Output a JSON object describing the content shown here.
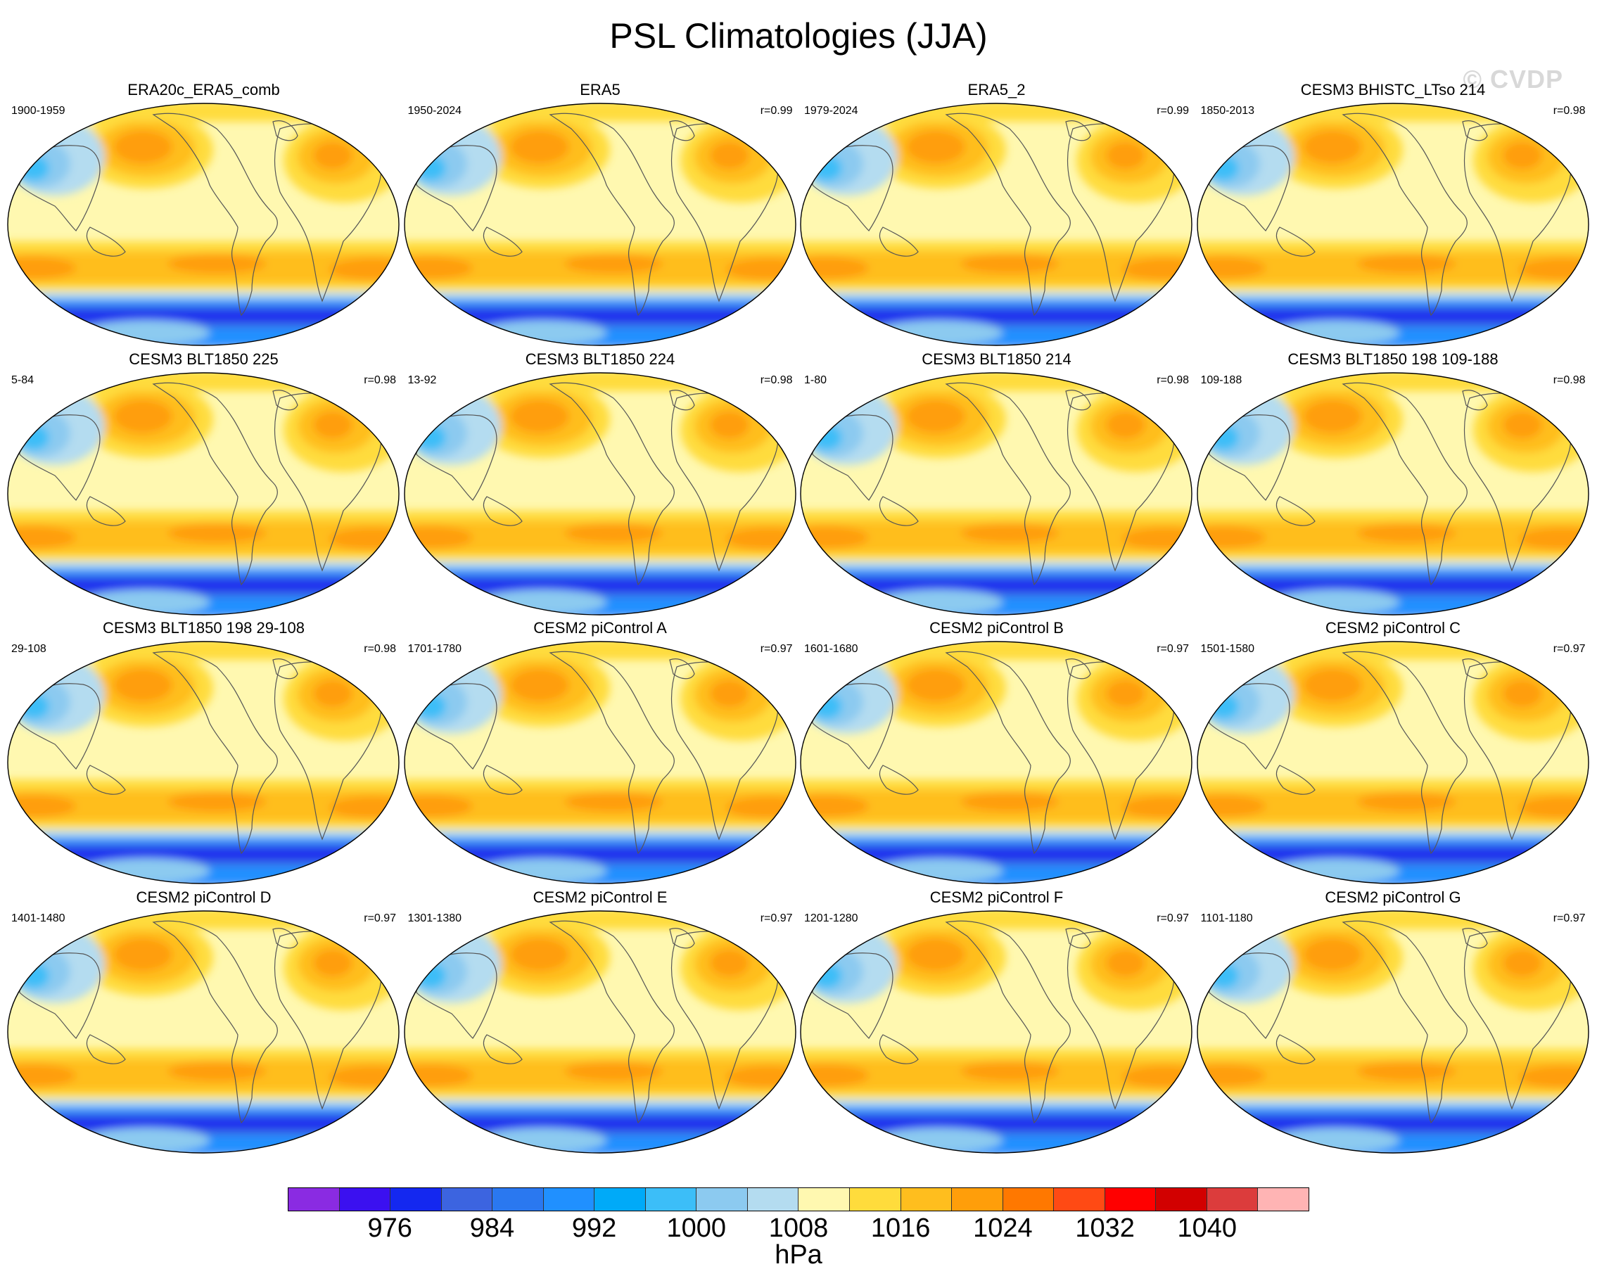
{
  "title": "PSL Climatologies (JJA)",
  "watermark": "© CVDP",
  "panels": [
    {
      "title": "ERA20c_ERA5_comb",
      "years": "1900-1959",
      "corr": ""
    },
    {
      "title": "ERA5",
      "years": "1950-2024",
      "corr": "r=0.99"
    },
    {
      "title": "ERA5_2",
      "years": "1979-2024",
      "corr": "r=0.99"
    },
    {
      "title": "CESM3 BHISTC_LTso 214",
      "years": "1850-2013",
      "corr": "r=0.98"
    },
    {
      "title": "CESM3 BLT1850 225",
      "years": "5-84",
      "corr": "r=0.98"
    },
    {
      "title": "CESM3 BLT1850 224",
      "years": "13-92",
      "corr": "r=0.98"
    },
    {
      "title": "CESM3 BLT1850 214",
      "years": "1-80",
      "corr": "r=0.98"
    },
    {
      "title": "CESM3 BLT1850 198 109-188",
      "years": "109-188",
      "corr": "r=0.98"
    },
    {
      "title": "CESM3 BLT1850 198 29-108",
      "years": "29-108",
      "corr": "r=0.98"
    },
    {
      "title": "CESM2 piControl A",
      "years": "1701-1780",
      "corr": "r=0.97"
    },
    {
      "title": "CESM2 piControl B",
      "years": "1601-1680",
      "corr": "r=0.97"
    },
    {
      "title": "CESM2 piControl C",
      "years": "1501-1580",
      "corr": "r=0.97"
    },
    {
      "title": "CESM2 piControl D",
      "years": "1401-1480",
      "corr": "r=0.97"
    },
    {
      "title": "CESM2 piControl E",
      "years": "1301-1380",
      "corr": "r=0.97"
    },
    {
      "title": "CESM2 piControl F",
      "years": "1201-1280",
      "corr": "r=0.97"
    },
    {
      "title": "CESM2 piControl G",
      "years": "1101-1180",
      "corr": "r=0.97"
    }
  ],
  "colorbar": {
    "colors": [
      "#8a2be2",
      "#3b10f0",
      "#1428f0",
      "#3c64e0",
      "#2a78f0",
      "#2090ff",
      "#00aaf8",
      "#3cbef8",
      "#8ccaf0",
      "#b4dcf0",
      "#fff8b0",
      "#ffdc3c",
      "#ffbe1e",
      "#ff9e0a",
      "#ff7800",
      "#ff4a14",
      "#ff0000",
      "#d20000",
      "#dc3c3c",
      "#ffb4b4"
    ],
    "labels": [
      "976",
      "984",
      "992",
      "1000",
      "1008",
      "1016",
      "1024",
      "1032",
      "1040"
    ],
    "label_bounds": [
      2,
      4,
      6,
      8,
      10,
      12,
      14,
      16,
      18
    ],
    "units": "hPa"
  },
  "map_colors": {
    "ocean_base": "#fff8b0",
    "high1": "#ffdc3c",
    "high2": "#ffbe1e",
    "high3": "#ff9e0a",
    "high4": "#ff7800",
    "asia_low1": "#b4dcf0",
    "asia_low2": "#8ccaf0",
    "asia_low3": "#3cbef8",
    "south_band1": "#2090ff",
    "south_band2": "#3c64e0",
    "south_band3": "#1428f0",
    "coast": "#555555"
  }
}
